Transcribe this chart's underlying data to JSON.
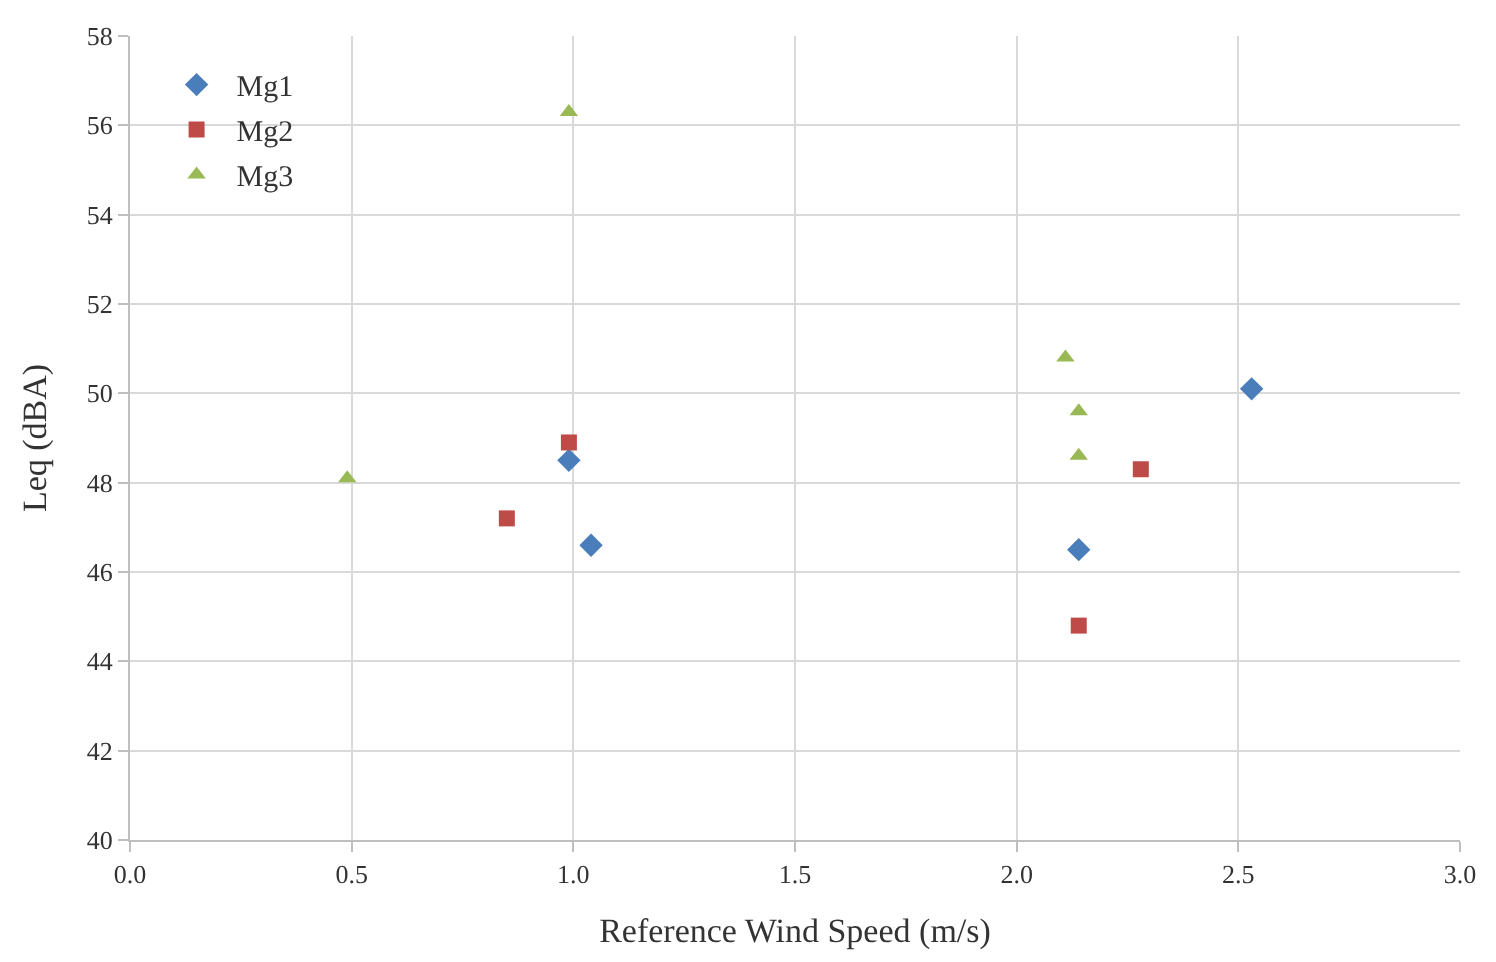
{
  "chart_data": {
    "type": "scatter",
    "xlabel": "Reference Wind Speed (m/s)",
    "ylabel": "Leq (dBA)",
    "xlim": [
      0,
      3
    ],
    "xticks": [
      {
        "value": 0,
        "label": "0.0"
      },
      0.5,
      {
        "value": 1,
        "label": "1.0"
      },
      1.5,
      {
        "value": 2,
        "label": "2.0"
      },
      2.5,
      {
        "value": 3,
        "label": "3.0"
      }
    ],
    "ylim": [
      40,
      58
    ],
    "yticks": [
      40,
      42,
      44,
      46,
      48,
      50,
      52,
      54,
      56,
      58
    ],
    "grid": true,
    "legend": "top left",
    "series": [
      {
        "name": "Mg1",
        "color": "#4a7ebb",
        "marker": "diamond",
        "x": [
          0.99,
          1.04,
          2.14,
          2.53
        ],
        "values": [
          48.5,
          46.6,
          46.5,
          50.1
        ]
      },
      {
        "name": "Mg2",
        "color": "#be4b48",
        "marker": "square",
        "x": [
          0.85,
          0.99,
          2.14,
          2.28
        ],
        "values": [
          47.2,
          48.9,
          44.8,
          48.3
        ]
      },
      {
        "name": "Mg3",
        "color": "#98b954",
        "marker": "triangle",
        "x": [
          0.49,
          0.99,
          2.11,
          2.14,
          2.14
        ],
        "values": [
          48.1,
          56.3,
          50.8,
          49.6,
          48.6
        ]
      }
    ]
  }
}
